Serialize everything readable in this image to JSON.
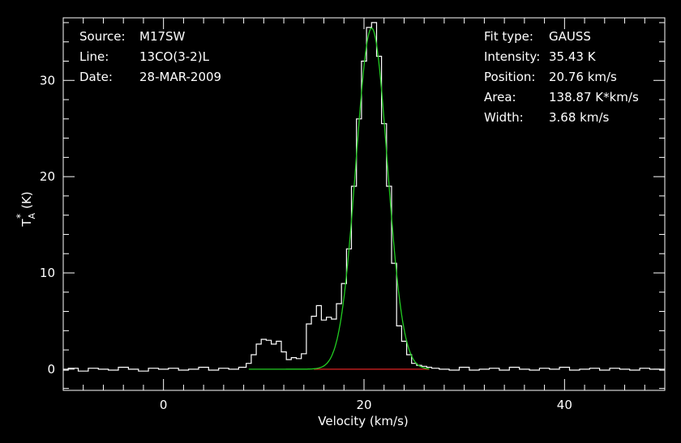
{
  "chart_data": {
    "type": "line",
    "xlabel": "Velocity (km/s)",
    "ylabel_main": "T",
    "ylabel_sup": "*",
    "ylabel_sub": "A",
    "ylabel_unit": "(K)",
    "xlim": [
      -10,
      50
    ],
    "ylim": [
      -2.2,
      36.5
    ],
    "xticks_major": [
      0,
      20,
      40
    ],
    "xticks_minor_step": 2,
    "yticks_major": [
      0,
      10,
      20,
      30
    ],
    "yticks_minor_step": 2,
    "grid": false,
    "colors": {
      "background": "#000000",
      "axes": "#ffffff",
      "spectrum": "#ffffff",
      "fit": "#22cc22",
      "baseline": "#dd2222"
    },
    "info_left": [
      {
        "label": "Source:",
        "value": "M17SW"
      },
      {
        "label": "Line:",
        "value": "13CO(3-2)L"
      },
      {
        "label": "Date:",
        "value": "28-MAR-2009"
      }
    ],
    "info_right": [
      {
        "label": "Fit type:",
        "value": "GAUSS"
      },
      {
        "label": "Intensity:",
        "value": "35.43 K"
      },
      {
        "label": "Position:",
        "value": "20.76 km/s"
      },
      {
        "label": "Area:",
        "value": "138.87 K*km/s"
      },
      {
        "label": "Width:",
        "value": "3.68 km/s"
      }
    ],
    "fit": {
      "amplitude": 35.43,
      "center": 20.76,
      "fwhm": 3.68
    },
    "baseline_range": [
      15.0,
      26.5
    ],
    "series": [
      {
        "role": "spectrum",
        "x": [
          -10,
          -9,
          -8,
          -7,
          -6,
          -5,
          -4,
          -3,
          -2,
          -1,
          0,
          1,
          2,
          3,
          4,
          5,
          6,
          7,
          8,
          8.5,
          9,
          9.5,
          10,
          10.5,
          11,
          11.5,
          12,
          12.5,
          13,
          13.5,
          14,
          14.5,
          15,
          15.5,
          16,
          16.5,
          17,
          17.5,
          18,
          18.5,
          19,
          19.5,
          20,
          20.5,
          21,
          21.5,
          22,
          22.5,
          23,
          23.5,
          24,
          24.5,
          25,
          25.5,
          26,
          26.5,
          27,
          28,
          29,
          30,
          31,
          32,
          33,
          34,
          35,
          36,
          37,
          38,
          39,
          40,
          41,
          42,
          43,
          44,
          45,
          46,
          47,
          48,
          49,
          50
        ],
        "y": [
          -0.1,
          0.1,
          -0.2,
          0.1,
          0.0,
          -0.1,
          0.2,
          0.0,
          -0.2,
          0.1,
          0.0,
          0.1,
          -0.1,
          0.0,
          0.2,
          -0.1,
          0.1,
          0.0,
          0.2,
          0.6,
          1.5,
          2.6,
          3.1,
          3.0,
          2.6,
          2.9,
          1.8,
          1.0,
          1.2,
          1.1,
          1.6,
          4.7,
          5.5,
          6.6,
          5.1,
          5.4,
          5.2,
          6.8,
          8.9,
          12.5,
          19.0,
          26.0,
          32.0,
          35.5,
          36.0,
          32.5,
          25.5,
          19.0,
          11.0,
          4.5,
          2.9,
          1.5,
          0.6,
          0.4,
          0.3,
          0.2,
          0.1,
          0.0,
          -0.1,
          0.2,
          -0.1,
          0.0,
          0.1,
          -0.1,
          0.2,
          0.0,
          -0.1,
          0.1,
          0.0,
          0.2,
          -0.1,
          0.0,
          0.1,
          -0.1,
          0.1,
          0.0,
          -0.1,
          0.1,
          0.0,
          -0.1
        ]
      }
    ]
  }
}
